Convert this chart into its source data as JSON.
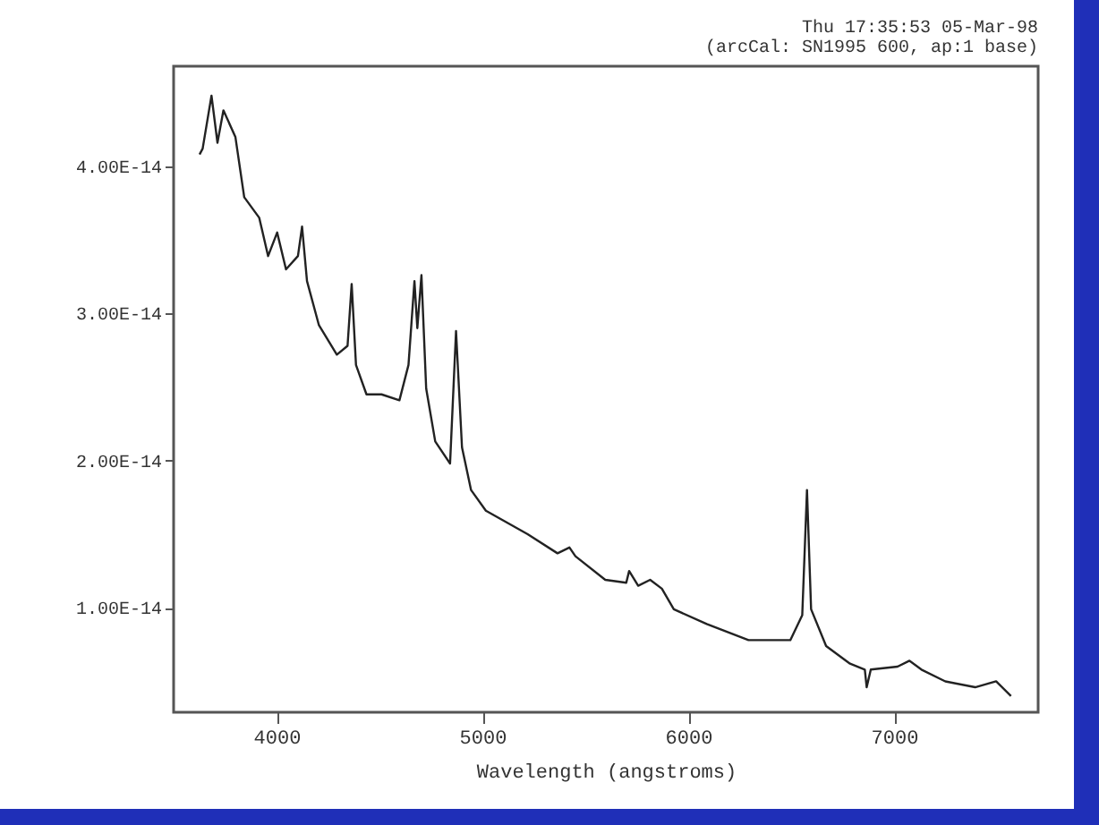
{
  "chart_data": {
    "type": "line",
    "title": "Thu 17:35:53 05-Mar-98",
    "subtitle": "(arcCal: SN1995 600, ap:1 base)",
    "xlabel": "Wavelength (angstroms)",
    "x": [
      3626,
      3641,
      3684,
      3713,
      3742,
      3800,
      3843,
      3916,
      3959,
      4003,
      4046,
      4104,
      4124,
      4148,
      4206,
      4293,
      4345,
      4365,
      4386,
      4437,
      4510,
      4597,
      4641,
      4670,
      4684,
      4704,
      4727,
      4771,
      4843,
      4872,
      4901,
      4945,
      5017,
      5220,
      5365,
      5423,
      5452,
      5597,
      5699,
      5713,
      5757,
      5815,
      5872,
      5930,
      6090,
      6293,
      6496,
      6554,
      6577,
      6597,
      6670,
      6786,
      6858,
      6867,
      6887,
      7017,
      7075,
      7133,
      7249,
      7394,
      7496,
      7568
    ],
    "series": [
      {
        "color": "#222222",
        "values": [
          4.08e-14,
          4.12e-14,
          4.48e-14,
          4.16e-14,
          4.38e-14,
          4.2e-14,
          3.79e-14,
          3.65e-14,
          3.39e-14,
          3.55e-14,
          3.3e-14,
          3.39e-14,
          3.59e-14,
          3.22e-14,
          2.92e-14,
          2.72e-14,
          2.78e-14,
          3.2e-14,
          2.65e-14,
          2.45e-14,
          2.45e-14,
          2.41e-14,
          2.65e-14,
          3.22e-14,
          2.9e-14,
          3.26e-14,
          2.49e-14,
          2.13e-14,
          1.98e-14,
          2.88e-14,
          2.09e-14,
          1.8e-14,
          1.66e-14,
          1.5e-14,
          1.37e-14,
          1.41e-14,
          1.35e-14,
          1.19e-14,
          1.17e-14,
          1.25e-14,
          1.15e-14,
          1.19e-14,
          1.13e-14,
          9.9e-15,
          8.9e-15,
          7.8e-15,
          7.8e-15,
          9.5e-15,
          1.8e-14,
          9.9e-15,
          7.4e-15,
          6.2e-15,
          5.8e-15,
          4.6e-15,
          5.8e-15,
          6e-15,
          6.4e-15,
          5.8e-15,
          5e-15,
          4.6e-15,
          5e-15,
          4e-15
        ]
      }
    ],
    "xlim": [
      3500,
      7700
    ],
    "xticks": [
      4000,
      5000,
      6000,
      7000
    ],
    "ylim": [
      2.9e-15,
      4.68e-14
    ],
    "yticks": [
      {
        "value": 1e-14,
        "label": "1.00E-14"
      },
      {
        "value": 2e-14,
        "label": "2.00E-14"
      },
      {
        "value": 3e-14,
        "label": "3.00E-14"
      },
      {
        "value": 4e-14,
        "label": "4.00E-14"
      }
    ],
    "grid": false,
    "marker": "none",
    "line_style": "solid"
  }
}
